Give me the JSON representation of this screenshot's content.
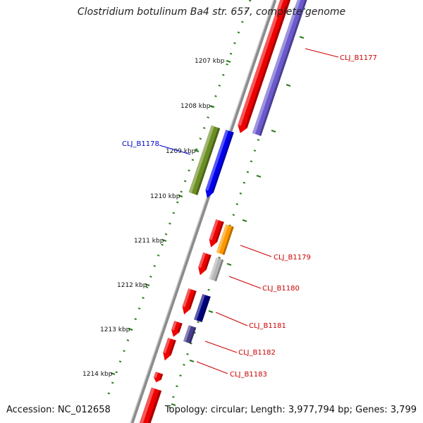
{
  "title": "Clostridium botulinum Ba4 str. 657, complete genome",
  "accession_text": "Accession: NC_012658",
  "topology_text": "Topology: circular; Length: 3,977,794 bp; Genes: 3,799",
  "ruler_labels": [
    "1207 kbp",
    "1208 kbp",
    "1209 kbp",
    "1210 kbp",
    "1211 kbp",
    "1212 kbp",
    "1213 kbp",
    "1214 kbp"
  ],
  "gene_labels": {
    "b1177": "CLJ_B1177",
    "b1178": "CLJ_B1178",
    "b1179": "CLJ_B1179",
    "b1180": "CLJ_B1180",
    "b1181": "CLJ_B1181",
    "b1182": "CLJ_B1182",
    "b1183": "CLJ_B1183"
  },
  "colors": {
    "backbone": "#8c8c8c",
    "tick": "#2e7d1e",
    "red_label": "#cc0000",
    "blue_label": "#0000cc",
    "cds": "#ee0000",
    "violet": "#6a5acd",
    "olive": "#6b8e23",
    "blue": "#0000ee",
    "orange": "#ff9900",
    "grey": "#b5b5b5",
    "navy": "#000080",
    "slate": "#483d8b"
  }
}
